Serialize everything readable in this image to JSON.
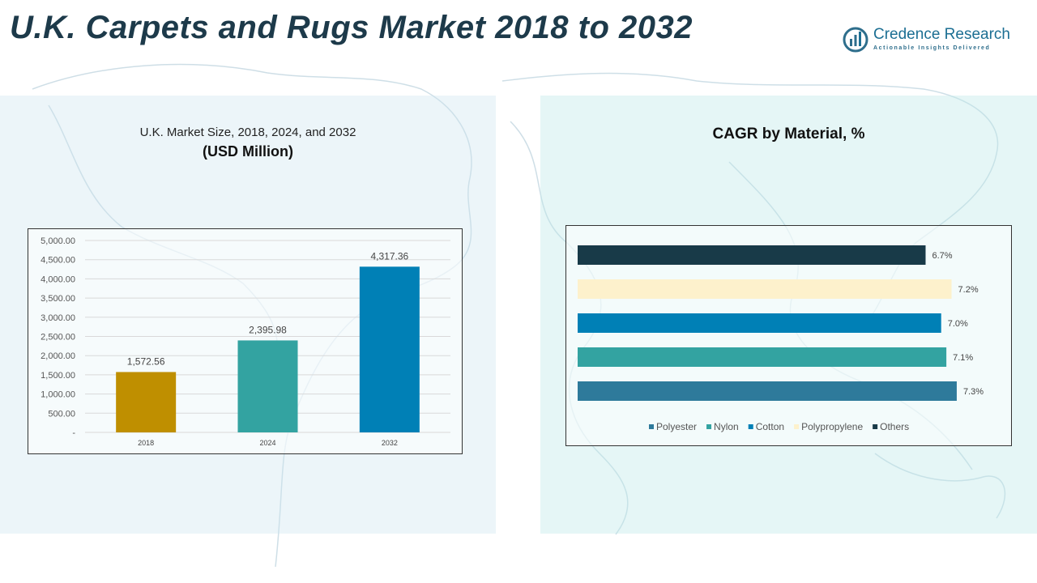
{
  "page": {
    "title": "U.K. Carpets and Rugs Market 2018 to 2032"
  },
  "logo": {
    "name": "Credence Research",
    "tagline": "Actionable Insights Delivered",
    "icon": "bar-chart-circle-icon"
  },
  "colors": {
    "title": "#1d3a4a",
    "bar_2018": "#bf8f00",
    "bar_2024": "#33a3a1",
    "bar_2032": "#0080b6",
    "polyester": "#2e7a9b",
    "nylon": "#33a3a1",
    "cotton": "#0080b6",
    "polypropylene": "#fdf1cc",
    "others": "#183a48"
  },
  "chart_data": [
    {
      "type": "bar",
      "title": "U.K. Market Size, 2018, 2024, and 2032",
      "subtitle": "(USD Million)",
      "categories": [
        "2018",
        "2024",
        "2032"
      ],
      "values": [
        1572.56,
        2395.98,
        4317.36
      ],
      "value_labels": [
        "1,572.56",
        "2,395.98",
        "4,317.36"
      ],
      "ylim": [
        0,
        5000
      ],
      "yticks": [
        0,
        500,
        1000,
        1500,
        2000,
        2500,
        3000,
        3500,
        4000,
        4500,
        5000
      ],
      "ytick_labels": [
        "-",
        "500.00",
        "1,000.00",
        "1,500.00",
        "2,000.00",
        "2,500.00",
        "3,000.00",
        "3,500.00",
        "4,000.00",
        "4,500.00",
        "5,000.00"
      ],
      "grid": true,
      "legend": "none"
    },
    {
      "type": "bar",
      "orientation": "horizontal",
      "title": "CAGR by Material, %",
      "categories": [
        "Polyester",
        "Nylon",
        "Cotton",
        "Polypropylene",
        "Others"
      ],
      "values": [
        7.3,
        7.1,
        7.0,
        7.2,
        6.7
      ],
      "value_labels": [
        "7.3%",
        "7.1%",
        "7.0%",
        "7.2%",
        "6.7%"
      ],
      "xlim": [
        0,
        7.8
      ],
      "grid": false,
      "legend": "bottom"
    }
  ]
}
